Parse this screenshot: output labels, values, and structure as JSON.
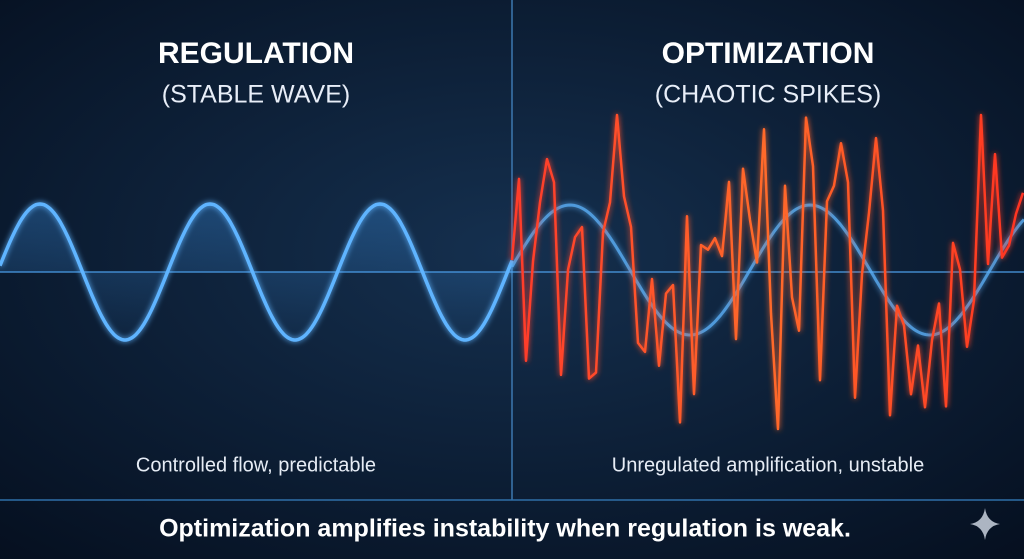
{
  "left": {
    "title": "REGULATION",
    "subtitle": "(STABLE WAVE)",
    "caption": "Controlled flow, predictable"
  },
  "right": {
    "title": "OPTIMIZATION",
    "subtitle": "(CHAOTIC SPIKES)",
    "caption": "Unregulated amplification, unstable"
  },
  "footer": {
    "text": "Optimization amplifies instability when regulation is weak."
  }
}
